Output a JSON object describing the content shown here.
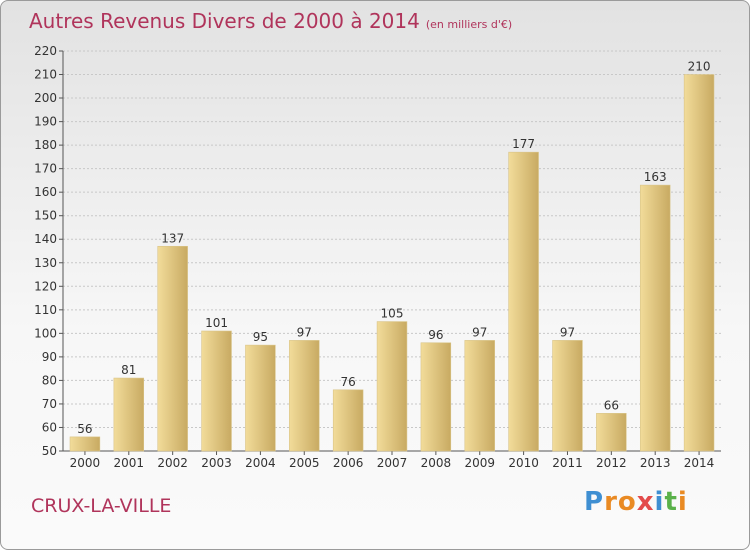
{
  "title": "Autres Revenus Divers de 2000 à 2014",
  "subtitle": "(en milliers d'€)",
  "city": "CRUX-LA-VILLE",
  "logo": {
    "letters": [
      "P",
      "r",
      "o",
      "x",
      "i",
      "t",
      "i"
    ],
    "colors": [
      "#3f8fd2",
      "#e98a23",
      "#e98a23",
      "#e34b4b",
      "#3f8fd2",
      "#5ab14a",
      "#e98a23"
    ]
  },
  "colors": {
    "bar_light": "#f2dc9a",
    "bar_dark": "#c8aa62",
    "title": "#b0345b",
    "grid": "#c8c8c8",
    "axis_text": "#333333"
  },
  "chart_data": {
    "type": "bar",
    "categories": [
      "2000",
      "2001",
      "2002",
      "2003",
      "2004",
      "2005",
      "2006",
      "2007",
      "2008",
      "2009",
      "2010",
      "2011",
      "2012",
      "2013",
      "2014"
    ],
    "values": [
      56,
      81,
      137,
      101,
      95,
      97,
      76,
      105,
      96,
      97,
      177,
      97,
      66,
      163,
      210
    ],
    "ylim": [
      50,
      220
    ],
    "ytick_step": 10,
    "grid": true
  }
}
